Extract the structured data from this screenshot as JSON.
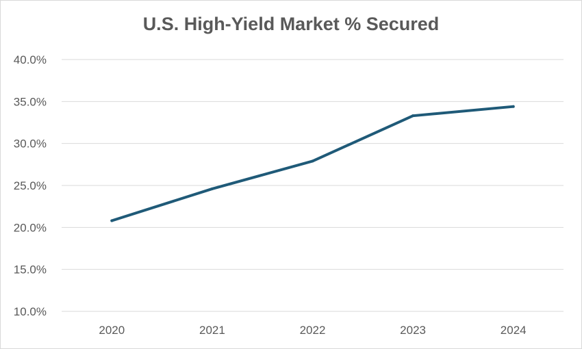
{
  "chart_data": {
    "type": "line",
    "title": "U.S. High-Yield Market % Secured",
    "xlabel": "",
    "ylabel": "",
    "categories": [
      "2020",
      "2021",
      "2022",
      "2023",
      "2024"
    ],
    "series": [
      {
        "values": [
          20.8,
          24.6,
          27.9,
          33.3,
          34.4
        ],
        "color": "#1f5a78"
      }
    ],
    "ylim": [
      10,
      40
    ],
    "yticks": [
      10,
      15,
      20,
      25,
      30,
      35,
      40
    ],
    "ytick_labels": [
      "10.0%",
      "15.0%",
      "20.0%",
      "25.0%",
      "30.0%",
      "35.0%",
      "40.0%"
    ],
    "grid": true,
    "legend": "none",
    "colors": {
      "grid": "#d9d9d9",
      "text": "#595959"
    }
  }
}
